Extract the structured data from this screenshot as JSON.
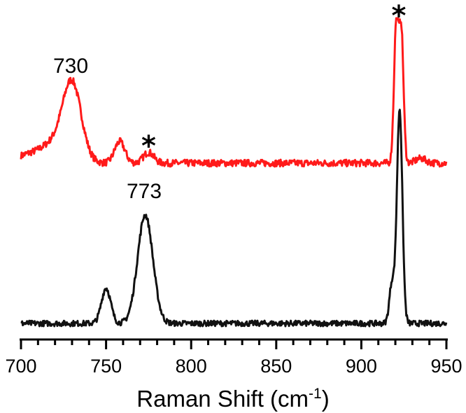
{
  "chart_data": {
    "type": "line",
    "title": "",
    "xlabel": "Raman Shift (cm",
    "xlabel_sup": "-1",
    "xlabel_close": ")",
    "xlim": [
      700,
      950
    ],
    "x_ticks": [
      700,
      750,
      800,
      850,
      900,
      950
    ],
    "x_tick_labels": [
      "700",
      "750",
      "800",
      "850",
      "900",
      "950"
    ],
    "y_axis_visible": false,
    "y_units": "arbitrary intensity, traces vertically offset",
    "legend": "none",
    "grid": false,
    "series": [
      {
        "color": "#ff1a1a",
        "position": "upper",
        "peaks": [
          {
            "x": 702,
            "height": 0.04,
            "width": 6
          },
          {
            "x": 718,
            "height": 0.12,
            "width": 8
          },
          {
            "x": 730,
            "height": 0.5,
            "width": 5.5
          },
          {
            "x": 758,
            "height": 0.14,
            "width": 3
          },
          {
            "x": 775,
            "height": 0.07,
            "width": 3
          },
          {
            "x": 920.5,
            "height": 0.9,
            "width": 1.3
          },
          {
            "x": 923.5,
            "height": 0.85,
            "width": 1.3
          },
          {
            "x": 935,
            "height": 0.03,
            "width": 3
          }
        ],
        "baseline": 0.0
      },
      {
        "color": "#111111",
        "position": "lower",
        "peaks": [
          {
            "x": 750,
            "height": 0.28,
            "width": 2.7
          },
          {
            "x": 773,
            "height": 0.86,
            "width": 4.5
          },
          {
            "x": 918,
            "height": 0.32,
            "width": 1.5
          },
          {
            "x": 922.5,
            "height": 1.7,
            "width": 1.6
          }
        ],
        "baseline": 0.0
      }
    ],
    "annotations": [
      {
        "text": "730",
        "x": 730,
        "target": "upper"
      },
      {
        "text": "773",
        "x": 773,
        "target": "lower"
      },
      {
        "text": "*",
        "x": 775,
        "target": "upper"
      },
      {
        "text": "*",
        "x": 922,
        "target": "upper"
      }
    ]
  }
}
